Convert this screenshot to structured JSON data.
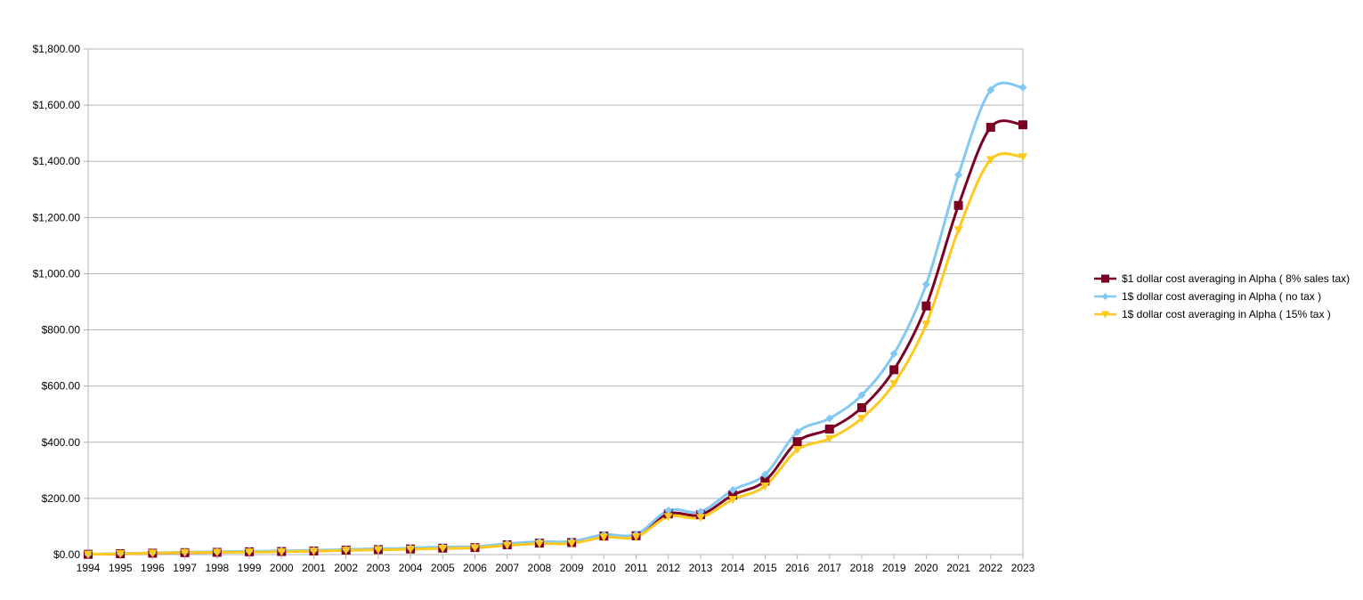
{
  "chart_data": {
    "type": "line",
    "title": "",
    "xlabel": "",
    "ylabel": "",
    "x": [
      1994,
      1995,
      1996,
      1997,
      1998,
      1999,
      2000,
      2001,
      2002,
      2003,
      2004,
      2005,
      2006,
      2007,
      2008,
      2009,
      2010,
      2011,
      2012,
      2013,
      2014,
      2015,
      2016,
      2017,
      2018,
      2019,
      2020,
      2021,
      2022,
      2023
    ],
    "y_ticks": [
      "$0.00",
      "$200.00",
      "$400.00",
      "$600.00",
      "$800.00",
      "$1,000.00",
      "$1,200.00",
      "$1,400.00",
      "$1,600.00",
      "$1,800.00"
    ],
    "ylim": [
      0,
      1800
    ],
    "grid": true,
    "legend_position": "right",
    "series": [
      {
        "name": "$1 dollar cost averaging in Alpha ( 8% sales tax)",
        "color": "#7b0024",
        "marker": "square",
        "values": [
          1,
          3,
          5,
          7,
          8,
          10,
          11,
          13,
          16,
          18,
          20,
          23,
          25,
          35,
          41,
          43,
          66,
          67,
          145,
          142,
          212,
          262,
          402,
          447,
          523,
          658,
          885,
          1243,
          1521,
          1530
        ]
      },
      {
        "name": "1$ dollar cost averaging in Alpha ( no tax )",
        "color": "#82c8f5",
        "marker": "diamond",
        "values": [
          1,
          4,
          6,
          9,
          10,
          12,
          13,
          15,
          18,
          21,
          23,
          27,
          28,
          39,
          46,
          47,
          71,
          72,
          157,
          153,
          230,
          285,
          436,
          485,
          568,
          715,
          962,
          1352,
          1654,
          1663
        ]
      },
      {
        "name": "1$ dollar cost averaging in Alpha ( 15% tax )",
        "color": "#ffc81e",
        "marker": "triangle-down",
        "values": [
          1,
          3,
          5,
          7,
          8,
          9,
          10,
          12,
          15,
          17,
          19,
          22,
          24,
          33,
          39,
          40,
          62,
          63,
          135,
          132,
          196,
          244,
          373,
          413,
          485,
          609,
          820,
          1156,
          1406,
          1416
        ]
      }
    ]
  }
}
